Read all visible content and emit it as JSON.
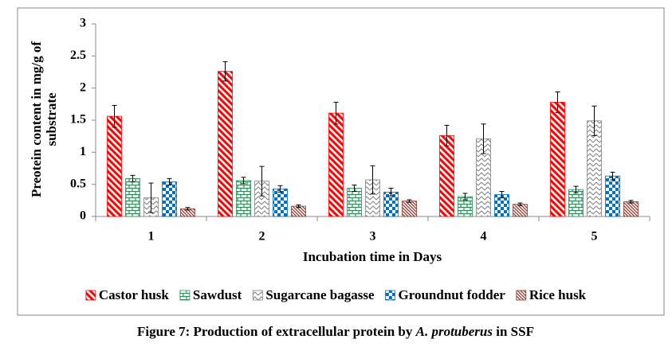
{
  "chart_data": {
    "type": "bar",
    "caption": [
      "Figure 7: Production of extracellular protein by ",
      "A. protuberus",
      " in SSF"
    ],
    "xlabel": "Incubation time in Days",
    "ylabel": [
      "Preotein content in mg/g of",
      "substrate"
    ],
    "categories": [
      "1",
      "2",
      "3",
      "4",
      "5"
    ],
    "ylim": [
      0,
      3
    ],
    "yticks": [
      0,
      0.5,
      1,
      1.5,
      2,
      2.5,
      3
    ],
    "series": [
      {
        "name": "Castor husk",
        "color": "#ff0000",
        "pattern": "stripes",
        "values": [
          1.56,
          2.26,
          1.61,
          1.26,
          1.78
        ],
        "errors": [
          0.17,
          0.15,
          0.17,
          0.16,
          0.16
        ]
      },
      {
        "name": "Sawdust",
        "color": "#2e8b57",
        "pattern": "brick",
        "values": [
          0.59,
          0.56,
          0.44,
          0.31,
          0.42
        ],
        "errors": [
          0.05,
          0.05,
          0.05,
          0.05,
          0.05
        ]
      },
      {
        "name": "Sugarcane bagasse",
        "color": "#7f7f7f",
        "pattern": "zigzag",
        "values": [
          0.29,
          0.55,
          0.57,
          1.21,
          1.49
        ],
        "errors": [
          0.23,
          0.23,
          0.22,
          0.23,
          0.23
        ]
      },
      {
        "name": "Groundnut fodder",
        "color": "#0070c0",
        "pattern": "checker",
        "values": [
          0.54,
          0.43,
          0.38,
          0.34,
          0.63
        ],
        "errors": [
          0.05,
          0.05,
          0.06,
          0.05,
          0.06
        ]
      },
      {
        "name": "Rice husk",
        "color": "#8b3a2f",
        "pattern": "hatch",
        "values": [
          0.12,
          0.16,
          0.24,
          0.19,
          0.23
        ],
        "errors": [
          0.02,
          0.02,
          0.02,
          0.02,
          0.02
        ]
      }
    ]
  }
}
